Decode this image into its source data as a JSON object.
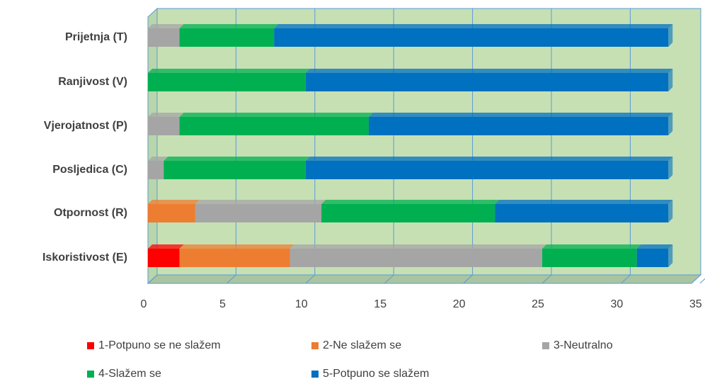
{
  "chart_data": {
    "type": "stacked_bar_horizontal",
    "categories": [
      "Prijetnja (T)",
      "Ranjivost (V)",
      "Vjerojatnost (P)",
      "Posljedica (C)",
      "Otpornost (R)",
      "Iskoristivost (E)"
    ],
    "series": [
      {
        "name": "1-Potpuno se ne slažem",
        "color": "#ff0000",
        "values": [
          0,
          0,
          0,
          0,
          0,
          2
        ]
      },
      {
        "name": "2-Ne slažem se",
        "color": "#ed7d31",
        "values": [
          0,
          0,
          0,
          0,
          3,
          7
        ]
      },
      {
        "name": "3-Neutralno",
        "color": "#a5a5a5",
        "values": [
          2,
          0,
          2,
          1,
          8,
          16
        ]
      },
      {
        "name": "4-Slažem se",
        "color": "#00b050",
        "values": [
          6,
          10,
          12,
          9,
          11,
          6
        ]
      },
      {
        "name": "5-Potpuno se slažem",
        "color": "#0070c0",
        "values": [
          25,
          23,
          19,
          23,
          11,
          2
        ]
      }
    ],
    "xlim": [
      0,
      35
    ],
    "xticks": [
      0,
      5,
      10,
      15,
      20,
      25,
      30,
      35
    ],
    "grid": true
  }
}
